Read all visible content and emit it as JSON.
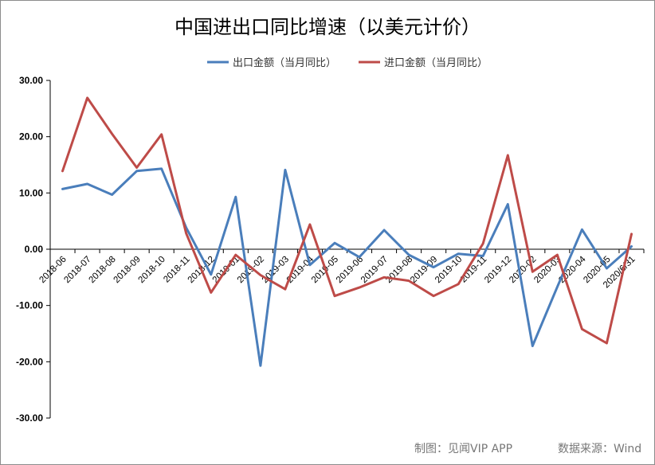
{
  "chart_data": {
    "type": "line",
    "title": "中国进出口同比增速（以美元计价）",
    "categories": [
      "2018-06",
      "2018-07",
      "2018-08",
      "2018-09",
      "2018-10",
      "2018-11",
      "2018-12",
      "2019-01",
      "2019-02",
      "2019-03",
      "2019-04",
      "2019-05",
      "2019-06",
      "2019-07",
      "2019-08",
      "2019-09",
      "2019-10",
      "2019-11",
      "2019-12",
      "2020-02",
      "2020-03",
      "2020-04",
      "2020-05",
      "2020/6/31"
    ],
    "series": [
      {
        "name": "出口金额（当月同比）",
        "color": "#4a7ebb",
        "values": [
          10.7,
          11.6,
          9.7,
          13.9,
          14.3,
          3.8,
          -4.5,
          9.3,
          -20.7,
          14.1,
          -2.8,
          1.1,
          -1.4,
          3.4,
          -1.0,
          -3.2,
          -0.8,
          -1.2,
          8.0,
          -17.2,
          -6.7,
          3.5,
          -3.4,
          0.5
        ]
      },
      {
        "name": "进口金额（当月同比）",
        "color": "#be4b48",
        "values": [
          13.9,
          26.9,
          20.5,
          14.5,
          20.4,
          2.8,
          -7.7,
          -1.0,
          -4.6,
          -7.1,
          4.4,
          -8.3,
          -6.8,
          -5.0,
          -5.6,
          -8.3,
          -6.2,
          1.0,
          16.7,
          -4.0,
          -1.0,
          -14.2,
          -16.7,
          2.7
        ]
      }
    ],
    "ylim": [
      -30,
      30
    ],
    "yticks": [
      "30.00",
      "20.00",
      "10.00",
      "0.00",
      "-10.00",
      "-20.00",
      "-30.00"
    ],
    "grid": false,
    "legend_position": "top"
  },
  "footer": {
    "credit": "制图：见闻VIP APP",
    "source": "数据来源：Wind"
  }
}
